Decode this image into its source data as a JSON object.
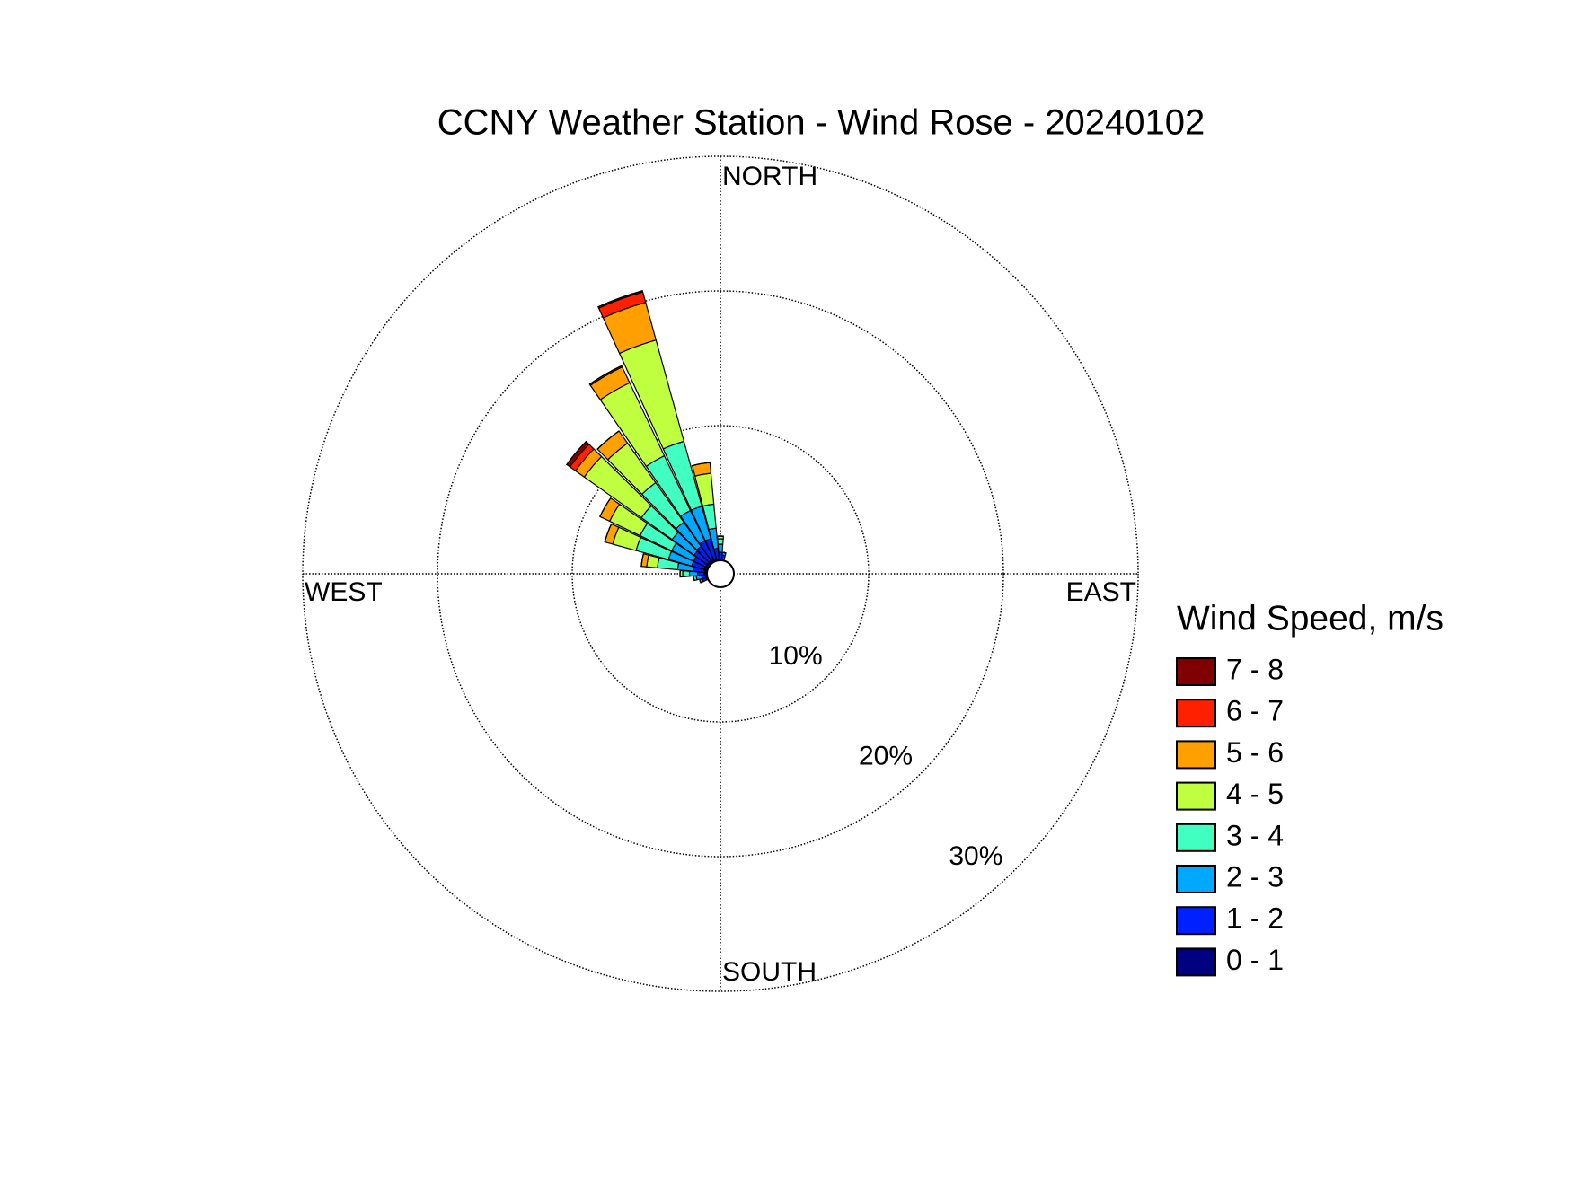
{
  "chart_data": {
    "type": "windrose",
    "title": "CCNY Weather Station - Wind Rose - 20240102",
    "direction_labels": [
      "NORTH",
      "EAST",
      "SOUTH",
      "WEST"
    ],
    "legend_title": "Wind Speed, m/s",
    "theta": [
      250,
      260,
      270,
      280,
      290,
      300,
      310,
      320,
      330,
      340,
      350,
      0,
      10
    ],
    "rlim": [
      0,
      30
    ],
    "rticks": [
      {
        "value": 10,
        "label": "10%"
      },
      {
        "value": 20,
        "label": "20%"
      },
      {
        "value": 30,
        "label": "30%"
      }
    ],
    "series": [
      {
        "name": "0 - 1",
        "color": "#000080",
        "values": [
          0.1,
          0.1,
          0.2,
          0.2,
          0.2,
          0.2,
          0.2,
          0.2,
          0.2,
          0.2,
          0.1,
          0.1,
          0.1
        ]
      },
      {
        "name": "1 - 2",
        "color": "#0020ff",
        "values": [
          0.3,
          0.3,
          0.5,
          0.8,
          1.0,
          1.0,
          1.2,
          1.3,
          1.5,
          1.5,
          0.8,
          0.5,
          0.3
        ]
      },
      {
        "name": "2 - 3",
        "color": "#00a8ff",
        "values": [
          0.2,
          0.4,
          0.6,
          1.2,
          1.8,
          1.8,
          2.0,
          2.2,
          2.5,
          2.5,
          1.5,
          0.6,
          0.2
        ]
      },
      {
        "name": "3 - 4",
        "color": "#40ffc0",
        "values": [
          0,
          0.2,
          0.5,
          1.5,
          2.5,
          2.6,
          2.8,
          3.6,
          4.5,
          5.0,
          1.8,
          0.4,
          0
        ]
      },
      {
        "name": "4 - 5",
        "color": "#c0ff40",
        "values": [
          0,
          0,
          0.2,
          0.8,
          1.8,
          2.5,
          5.2,
          3.6,
          6.0,
          7.8,
          2.3,
          0.2,
          0
        ]
      },
      {
        "name": "5 - 6",
        "color": "#ffa000",
        "values": [
          0,
          0,
          0,
          0.4,
          0.6,
          0.8,
          0.8,
          1.1,
          1.3,
          2.9,
          0.8,
          0,
          0
        ]
      },
      {
        "name": "6 - 7",
        "color": "#ff2000",
        "values": [
          0,
          0,
          0,
          0,
          0,
          0,
          0.5,
          0,
          0.1,
          0.8,
          0,
          0,
          0
        ]
      },
      {
        "name": "7 - 8",
        "color": "#800000",
        "values": [
          0,
          0,
          0,
          0,
          0,
          0,
          0.3,
          0,
          0,
          0.1,
          0,
          0,
          0
        ]
      }
    ]
  }
}
